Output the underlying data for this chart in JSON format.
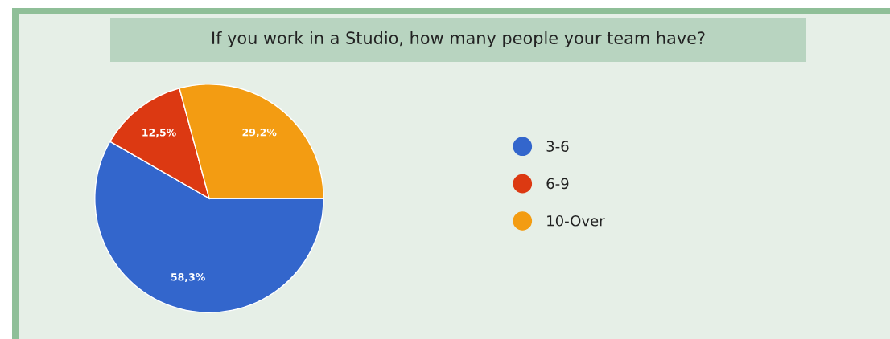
{
  "chart_data": {
    "type": "pie",
    "title": "If you work in a Studio, how many people your team have?",
    "categories": [
      "3-6",
      "6-9",
      "10-Over"
    ],
    "values": [
      58.3,
      12.5,
      29.2
    ],
    "value_labels": [
      "58,3%",
      "12,5%",
      "29,2%"
    ],
    "colors": [
      "#3366cc",
      "#dc3912",
      "#f39c12"
    ],
    "legend": "right"
  }
}
